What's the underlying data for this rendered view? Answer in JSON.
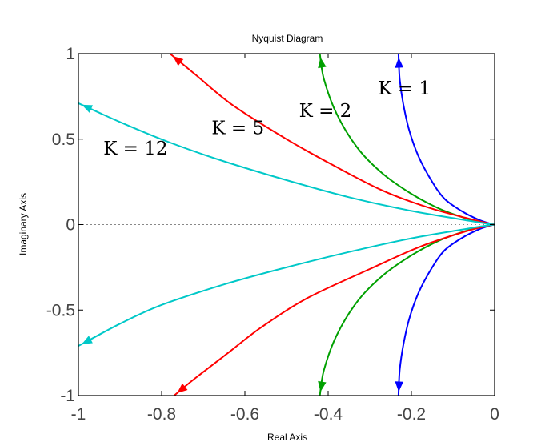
{
  "chart_data": {
    "type": "line",
    "title": "Nyquist Diagram",
    "xlabel": "Real Axis",
    "ylabel": "Imaginary Axis",
    "xlim": [
      -1,
      0
    ],
    "ylim": [
      -1,
      1
    ],
    "xticks": [
      "-1",
      "-0.8",
      "-0.6",
      "-0.4",
      "-0.2",
      "0"
    ],
    "yticks": [
      "1",
      "0.5",
      "0",
      "-0.5",
      "-1"
    ],
    "xtick_values": [
      -1,
      -0.8,
      -0.6,
      -0.4,
      -0.2,
      0
    ],
    "ytick_values": [
      1,
      0.5,
      0,
      -0.5,
      -1
    ],
    "zero_line": true,
    "series": [
      {
        "name": "K = 1",
        "color": "#0000ff",
        "label_at": [
          -0.28,
          0.76
        ],
        "upper": [
          [
            -0.231,
            1.0
          ],
          [
            -0.228,
            0.85
          ],
          [
            -0.219,
            0.7
          ],
          [
            -0.205,
            0.55
          ],
          [
            -0.183,
            0.4
          ],
          [
            -0.15,
            0.25
          ],
          [
            -0.12,
            0.15
          ],
          [
            -0.08,
            0.08
          ],
          [
            -0.04,
            0.03
          ],
          [
            -0.01,
            0.005
          ],
          [
            0,
            0
          ]
        ],
        "lower": [
          [
            -0.231,
            -1.0
          ],
          [
            -0.228,
            -0.85
          ],
          [
            -0.219,
            -0.7
          ],
          [
            -0.205,
            -0.55
          ],
          [
            -0.183,
            -0.4
          ],
          [
            -0.15,
            -0.25
          ],
          [
            -0.12,
            -0.15
          ],
          [
            -0.08,
            -0.08
          ],
          [
            -0.04,
            -0.03
          ],
          [
            -0.01,
            -0.005
          ],
          [
            0,
            0
          ]
        ]
      },
      {
        "name": "K = 2",
        "color": "#00a000",
        "label_at": [
          -0.47,
          0.63
        ],
        "upper": [
          [
            -0.42,
            1.0
          ],
          [
            -0.41,
            0.85
          ],
          [
            -0.38,
            0.65
          ],
          [
            -0.33,
            0.45
          ],
          [
            -0.27,
            0.3
          ],
          [
            -0.2,
            0.18
          ],
          [
            -0.13,
            0.09
          ],
          [
            -0.06,
            0.03
          ],
          [
            -0.02,
            0.008
          ],
          [
            0,
            0
          ]
        ],
        "lower": [
          [
            -0.42,
            -1.0
          ],
          [
            -0.41,
            -0.85
          ],
          [
            -0.38,
            -0.65
          ],
          [
            -0.33,
            -0.45
          ],
          [
            -0.27,
            -0.3
          ],
          [
            -0.2,
            -0.18
          ],
          [
            -0.13,
            -0.09
          ],
          [
            -0.06,
            -0.03
          ],
          [
            -0.02,
            -0.008
          ],
          [
            0,
            0
          ]
        ]
      },
      {
        "name": "K = 5",
        "color": "#ff0000",
        "label_at": [
          -0.68,
          0.53
        ],
        "upper": [
          [
            -0.78,
            1.0
          ],
          [
            -0.72,
            0.88
          ],
          [
            -0.63,
            0.7
          ],
          [
            -0.5,
            0.5
          ],
          [
            -0.39,
            0.35
          ],
          [
            -0.27,
            0.2
          ],
          [
            -0.16,
            0.1
          ],
          [
            -0.07,
            0.04
          ],
          [
            -0.02,
            0.01
          ],
          [
            0,
            0
          ]
        ],
        "lower": [
          [
            -0.77,
            -1.0
          ],
          [
            -0.72,
            -0.9
          ],
          [
            -0.64,
            -0.75
          ],
          [
            -0.56,
            -0.6
          ],
          [
            -0.45,
            -0.43
          ],
          [
            -0.3,
            -0.26
          ],
          [
            -0.18,
            -0.13
          ],
          [
            -0.07,
            -0.04
          ],
          [
            -0.02,
            -0.01
          ],
          [
            0,
            0
          ]
        ]
      },
      {
        "name": "K = 12",
        "color": "#00c8c8",
        "label_at": [
          -0.94,
          0.41
        ],
        "upper": [
          [
            -1.0,
            0.71
          ],
          [
            -0.9,
            0.6
          ],
          [
            -0.78,
            0.48
          ],
          [
            -0.65,
            0.37
          ],
          [
            -0.5,
            0.26
          ],
          [
            -0.35,
            0.16
          ],
          [
            -0.2,
            0.08
          ],
          [
            -0.08,
            0.03
          ],
          [
            -0.02,
            0.006
          ],
          [
            0,
            0
          ]
        ],
        "lower": [
          [
            -1.0,
            -0.71
          ],
          [
            -0.9,
            -0.58
          ],
          [
            -0.8,
            -0.47
          ],
          [
            -0.65,
            -0.35
          ],
          [
            -0.5,
            -0.25
          ],
          [
            -0.35,
            -0.16
          ],
          [
            -0.2,
            -0.08
          ],
          [
            -0.08,
            -0.03
          ],
          [
            -0.02,
            -0.006
          ],
          [
            0,
            0
          ]
        ]
      }
    ]
  }
}
